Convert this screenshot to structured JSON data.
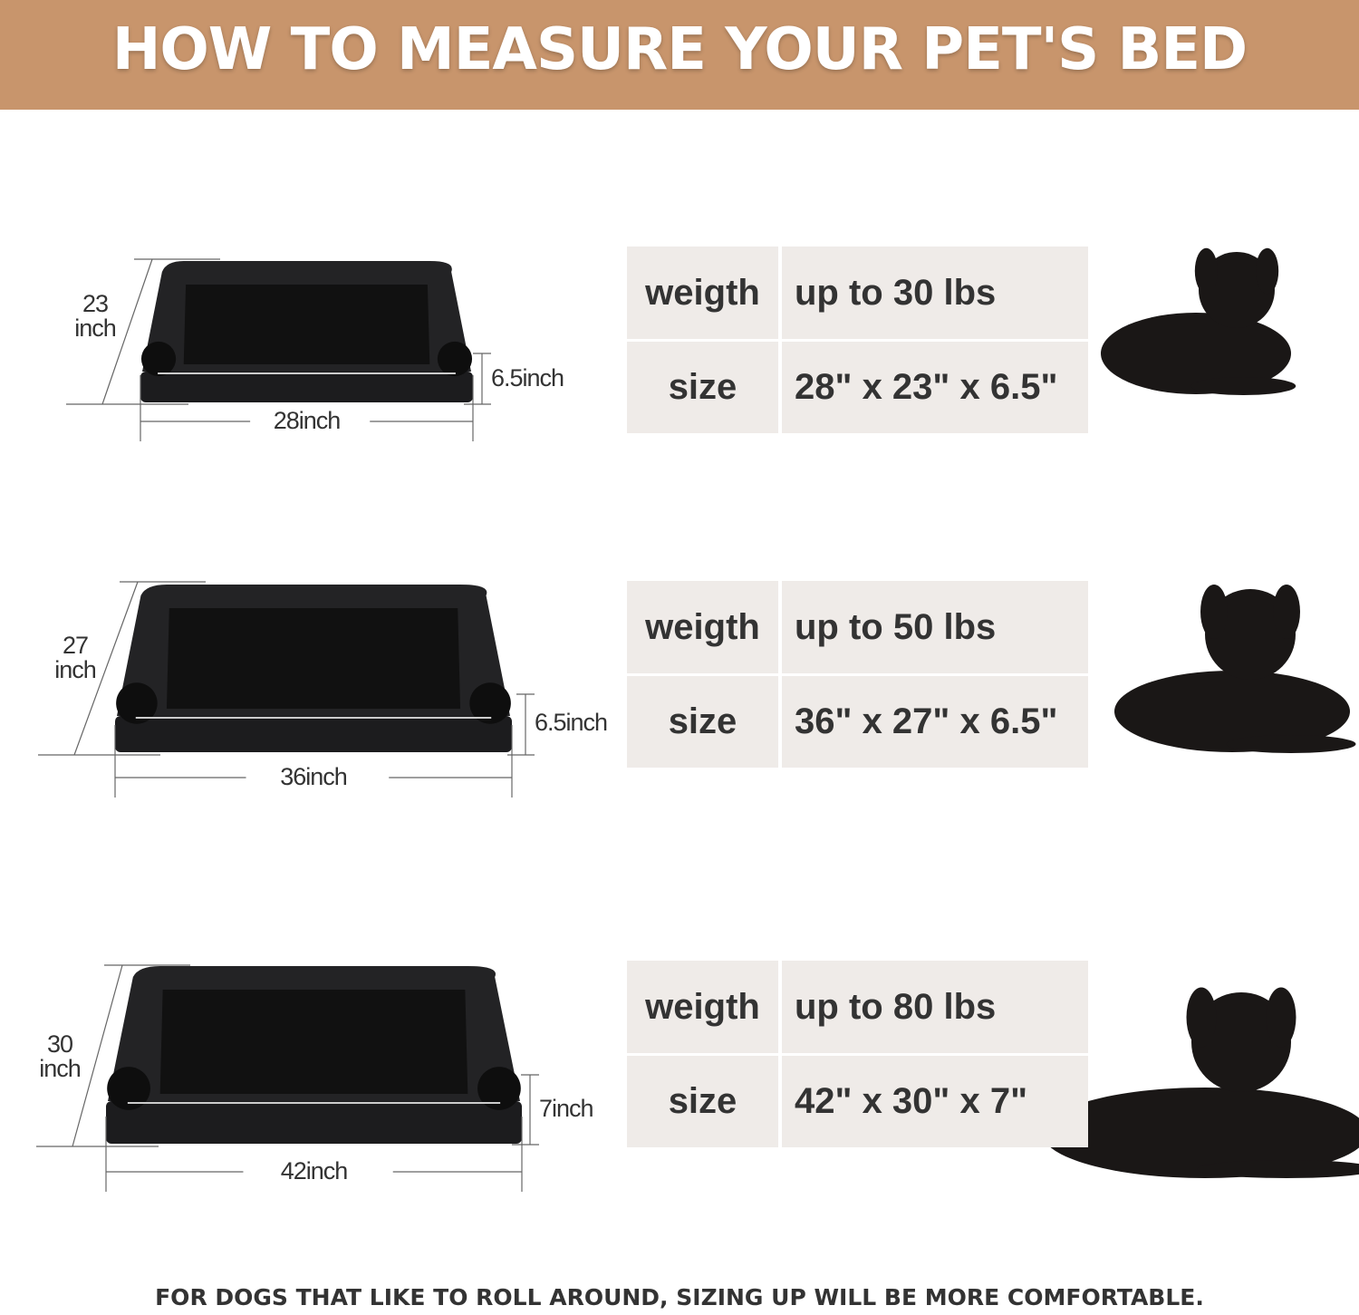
{
  "header": {
    "title": "HOW TO MEASURE YOUR PET'S BED",
    "background_color": "#C8956C"
  },
  "sizes": [
    {
      "depth_value": "23",
      "depth_unit": "inch",
      "width_label": "28inch",
      "height_label": "6.5inch",
      "weight_label": "weigth",
      "weight_value": "up to 30 lbs",
      "size_label": "size",
      "size_value": "28\" x 23\" x 6.5\"",
      "dog": "french-bulldog"
    },
    {
      "depth_value": "27",
      "depth_unit": "inch",
      "width_label": "36inch",
      "height_label": "6.5inch",
      "weight_label": "weigth",
      "weight_value": "up to 50 lbs",
      "size_label": "size",
      "size_value": "36\" x 27\" x 6.5\"",
      "dog": "spaniel"
    },
    {
      "depth_value": "30",
      "depth_unit": "inch",
      "width_label": "42inch",
      "height_label": "7inch",
      "weight_label": "weigth",
      "weight_value": "up to 80 lbs",
      "size_label": "size",
      "size_value": "42\" x 30\" x 7\"",
      "dog": "black-labrador"
    }
  ],
  "footer": {
    "note": "FOR DOGS THAT LIKE TO ROLL AROUND, SIZING UP WILL BE MORE COMFORTABLE."
  }
}
